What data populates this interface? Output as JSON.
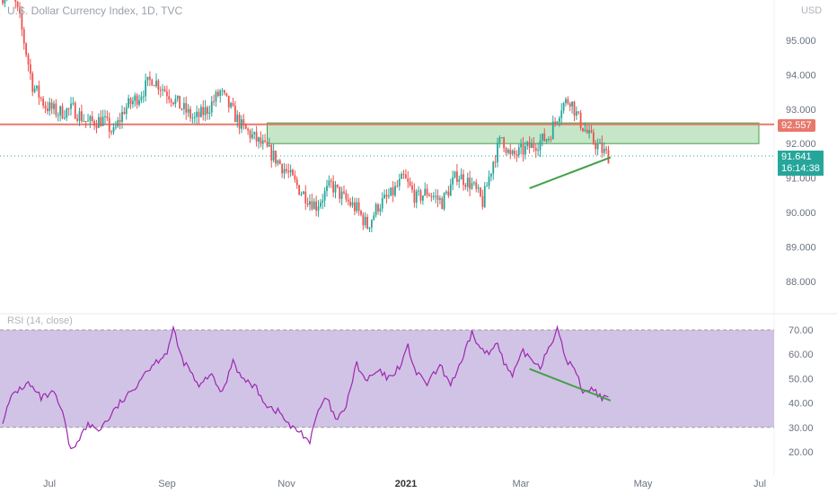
{
  "header": {
    "title": "U.S. Dollar Currency Index, 1D, TVC",
    "currency": "USD",
    "rsi_label": "RSI (14, close)"
  },
  "tags": {
    "level": "92.557",
    "price": "91.641",
    "countdown": "16:14:38"
  },
  "colors": {
    "up": "#26a69a",
    "down": "#ef5350",
    "level_line": "#e8786b",
    "zone": "#81c784",
    "trendline": "#43a047",
    "rsi_line": "#9c27b0",
    "rsi_band": "#c9b8e0"
  },
  "chart_data": [
    {
      "type": "candlestick",
      "title": "U.S. Dollar Currency Index, 1D, TVC",
      "y_ticks": [
        "95.000",
        "94.000",
        "93.000",
        "92.000",
        "91.000",
        "90.000",
        "89.000",
        "88.000"
      ],
      "x_ticks": [
        "Jul",
        "Sep",
        "Nov",
        "2021",
        "Mar",
        "May",
        "Jul"
      ],
      "ylim": [
        87.2,
        96.2
      ],
      "close_path": [
        [
          0,
          96.3
        ],
        [
          3,
          96.7
        ],
        [
          8,
          95.6
        ],
        [
          14,
          93.7
        ],
        [
          20,
          93.1
        ],
        [
          26,
          92.9
        ],
        [
          33,
          93.0
        ],
        [
          40,
          92.6
        ],
        [
          47,
          92.7
        ],
        [
          52,
          92.3
        ],
        [
          57,
          93.0
        ],
        [
          64,
          93.4
        ],
        [
          70,
          93.9
        ],
        [
          77,
          93.5
        ],
        [
          83,
          93.1
        ],
        [
          90,
          92.7
        ],
        [
          96,
          93.0
        ],
        [
          102,
          93.5
        ],
        [
          108,
          92.9
        ],
        [
          112,
          92.5
        ],
        [
          119,
          92.1
        ],
        [
          126,
          91.7
        ],
        [
          133,
          91.2
        ],
        [
          140,
          90.6
        ],
        [
          147,
          90.2
        ],
        [
          154,
          90.8
        ],
        [
          160,
          90.4
        ],
        [
          166,
          90.1
        ],
        [
          171,
          89.6
        ],
        [
          176,
          90.2
        ],
        [
          182,
          90.5
        ],
        [
          188,
          91.0
        ],
        [
          194,
          90.4
        ],
        [
          199,
          90.6
        ],
        [
          206,
          90.3
        ],
        [
          213,
          91.1
        ],
        [
          220,
          90.8
        ],
        [
          225,
          90.3
        ],
        [
          230,
          91.5
        ],
        [
          234,
          92.2
        ],
        [
          238,
          91.6
        ],
        [
          244,
          91.8
        ],
        [
          250,
          92.0
        ],
        [
          256,
          92.2
        ],
        [
          262,
          93.1
        ],
        [
          266,
          93.3
        ],
        [
          270,
          92.7
        ],
        [
          275,
          92.2
        ],
        [
          281,
          91.8
        ],
        [
          284,
          91.64
        ]
      ],
      "horizontal_level": 92.557,
      "last_price": 91.641,
      "supply_zone": {
        "from": 92.0,
        "to": 92.6
      },
      "trendline": {
        "from": [
          247,
          90.7
        ],
        "to": [
          285,
          91.6
        ]
      }
    },
    {
      "type": "line",
      "title": "RSI (14, close)",
      "y_ticks": [
        "70.00",
        "60.00",
        "50.00",
        "40.00",
        "30.00",
        "20.00"
      ],
      "band": [
        30,
        70
      ],
      "ylim": [
        15,
        72
      ],
      "series_path": [
        [
          0,
          33
        ],
        [
          5,
          44
        ],
        [
          12,
          48
        ],
        [
          18,
          42
        ],
        [
          24,
          44
        ],
        [
          28,
          36
        ],
        [
          32,
          20
        ],
        [
          36,
          26
        ],
        [
          40,
          31
        ],
        [
          45,
          29
        ],
        [
          50,
          34
        ],
        [
          55,
          40
        ],
        [
          60,
          44
        ],
        [
          66,
          52
        ],
        [
          72,
          57
        ],
        [
          77,
          61
        ],
        [
          80,
          70
        ],
        [
          84,
          58
        ],
        [
          88,
          53
        ],
        [
          92,
          46
        ],
        [
          97,
          52
        ],
        [
          103,
          44
        ],
        [
          108,
          58
        ],
        [
          112,
          50
        ],
        [
          118,
          47
        ],
        [
          124,
          39
        ],
        [
          130,
          36
        ],
        [
          135,
          30
        ],
        [
          140,
          28
        ],
        [
          144,
          24
        ],
        [
          148,
          37
        ],
        [
          152,
          42
        ],
        [
          156,
          33
        ],
        [
          160,
          36
        ],
        [
          166,
          56
        ],
        [
          170,
          49
        ],
        [
          176,
          53
        ],
        [
          181,
          50
        ],
        [
          186,
          55
        ],
        [
          190,
          63
        ],
        [
          194,
          52
        ],
        [
          199,
          48
        ],
        [
          205,
          55
        ],
        [
          210,
          48
        ],
        [
          215,
          56
        ],
        [
          220,
          69
        ],
        [
          224,
          62
        ],
        [
          228,
          60
        ],
        [
          232,
          66
        ],
        [
          235,
          56
        ],
        [
          239,
          51
        ],
        [
          244,
          61
        ],
        [
          248,
          58
        ],
        [
          252,
          55
        ],
        [
          256,
          63
        ],
        [
          260,
          70
        ],
        [
          264,
          58
        ],
        [
          268,
          54
        ],
        [
          272,
          45
        ],
        [
          276,
          46
        ],
        [
          280,
          43
        ],
        [
          284,
          41
        ]
      ],
      "trendline": {
        "from": [
          247,
          54
        ],
        "to": [
          285,
          41
        ]
      }
    }
  ]
}
